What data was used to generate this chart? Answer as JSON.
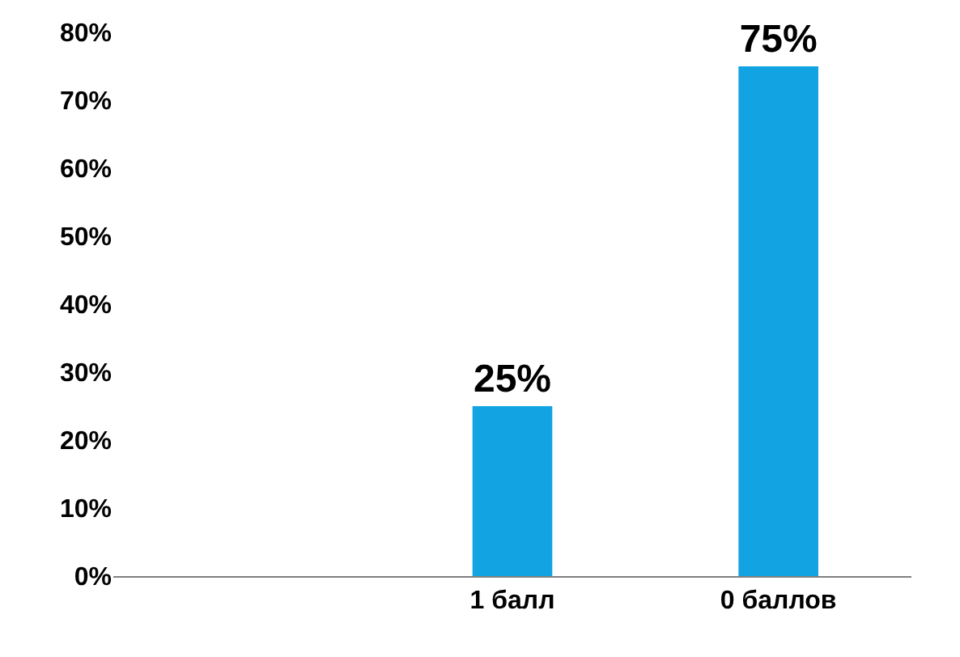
{
  "chart_data": {
    "type": "bar",
    "categories": [
      null,
      "1 балл",
      "0 баллов"
    ],
    "values": [
      null,
      25,
      75
    ],
    "value_labels": [
      null,
      "25%",
      "75%"
    ],
    "color": "#12a3e3",
    "ylim": [
      0,
      80
    ],
    "yticks": [
      {
        "value": 0,
        "label": "0%"
      },
      {
        "value": 10,
        "label": "10%"
      },
      {
        "value": 20,
        "label": "20%"
      },
      {
        "value": 30,
        "label": "30%"
      },
      {
        "value": 40,
        "label": "40%"
      },
      {
        "value": 50,
        "label": "50%"
      },
      {
        "value": 60,
        "label": "60%"
      },
      {
        "value": 70,
        "label": "70%"
      },
      {
        "value": 80,
        "label": "80%"
      }
    ],
    "tick_labels": "xy"
  }
}
